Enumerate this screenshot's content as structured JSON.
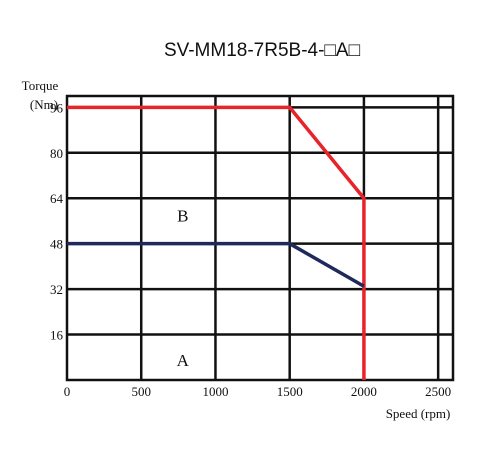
{
  "chart_data": {
    "type": "line",
    "title": "SV-MM18-7R5B-4-□A□",
    "xlabel": "Speed (rpm)",
    "ylabel_line1": "Torque",
    "ylabel_line2": "(Nm)",
    "xlim": [
      0,
      2600
    ],
    "ylim": [
      0,
      100
    ],
    "x_ticks": [
      0,
      500,
      1000,
      1500,
      2000,
      2500
    ],
    "y_ticks": [
      16,
      32,
      48,
      64,
      80,
      96
    ],
    "grid": true,
    "region_labels": [
      {
        "text": "B",
        "x": 780,
        "y": 58
      },
      {
        "text": "A",
        "x": 780,
        "y": 7
      }
    ],
    "series": [
      {
        "color": "#e8232a",
        "x": [
          0,
          1500,
          2000,
          2000
        ],
        "y": [
          96,
          96,
          64,
          0
        ]
      },
      {
        "color": "#1f2a5c",
        "x": [
          0,
          1500,
          2000
        ],
        "y": [
          48,
          48,
          33
        ]
      }
    ]
  }
}
